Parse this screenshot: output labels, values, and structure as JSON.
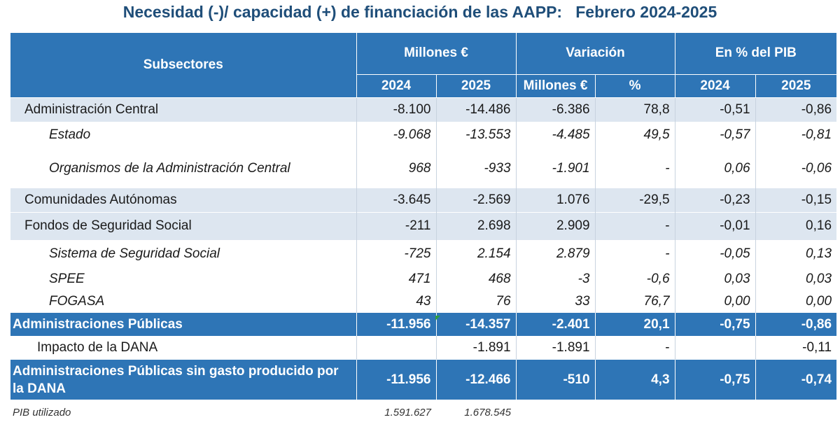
{
  "title": "Necesidad (-)/ capacidad (+) de financiación de las AAPP:   Febrero 2024-2025",
  "header": {
    "subsectores": "Subsectores",
    "millones": "Millones €",
    "variacion": "Variación",
    "pib": "En % del PIB",
    "y2024a": "2024",
    "y2025a": "2025",
    "var_mill": "Millones €",
    "var_pct": "%",
    "y2024b": "2024",
    "y2025b": "2025"
  },
  "rows": [
    {
      "label": "Administración Central",
      "m2024": "-8.100",
      "m2025": "-14.486",
      "var_m": "-6.386",
      "var_pct": "78,8",
      "pib2024": "-0,51",
      "pib2025": "-0,86"
    },
    {
      "label": "Estado",
      "m2024": "-9.068",
      "m2025": "-13.553",
      "var_m": "-4.485",
      "var_pct": "49,5",
      "pib2024": "-0,57",
      "pib2025": "-0,81"
    },
    {
      "label": "Organismos de la Administración Central",
      "m2024": "968",
      "m2025": "-933",
      "var_m": "-1.901",
      "var_pct": "-",
      "pib2024": "0,06",
      "pib2025": "-0,06"
    },
    {
      "label": "Comunidades Autónomas",
      "m2024": "-3.645",
      "m2025": "-2.569",
      "var_m": "1.076",
      "var_pct": "-29,5",
      "pib2024": "-0,23",
      "pib2025": "-0,15"
    },
    {
      "label": "Fondos de Seguridad Social",
      "m2024": "-211",
      "m2025": "2.698",
      "var_m": "2.909",
      "var_pct": "-",
      "pib2024": "-0,01",
      "pib2025": "0,16"
    },
    {
      "label": "Sistema de Seguridad Social",
      "m2024": "-725",
      "m2025": "2.154",
      "var_m": "2.879",
      "var_pct": "-",
      "pib2024": "-0,05",
      "pib2025": "0,13"
    },
    {
      "label": "SPEE",
      "m2024": "471",
      "m2025": "468",
      "var_m": "-3",
      "var_pct": "-0,6",
      "pib2024": "0,03",
      "pib2025": "0,03"
    },
    {
      "label": "FOGASA",
      "m2024": "43",
      "m2025": "76",
      "var_m": "33",
      "var_pct": "76,7",
      "pib2024": "0,00",
      "pib2025": "0,00"
    },
    {
      "label": "Administraciones Públicas",
      "m2024": "-11.956",
      "m2025": "-14.357",
      "var_m": "-2.401",
      "var_pct": "20,1",
      "pib2024": "-0,75",
      "pib2025": "-0,86"
    },
    {
      "label": "Impacto de la DANA",
      "m2024": "",
      "m2025": "-1.891",
      "var_m": "-1.891",
      "var_pct": "-",
      "pib2024": "",
      "pib2025": "-0,11"
    },
    {
      "label": "Administraciones Públicas sin gasto producido por la DANA",
      "m2024": "-11.956",
      "m2025": "-12.466",
      "var_m": "-510",
      "var_pct": "4,3",
      "pib2024": "-0,75",
      "pib2025": "-0,74"
    }
  ],
  "footer": {
    "label": "PIB utilizado",
    "m2024": "1.591.627",
    "m2025": "1.678.545"
  }
}
